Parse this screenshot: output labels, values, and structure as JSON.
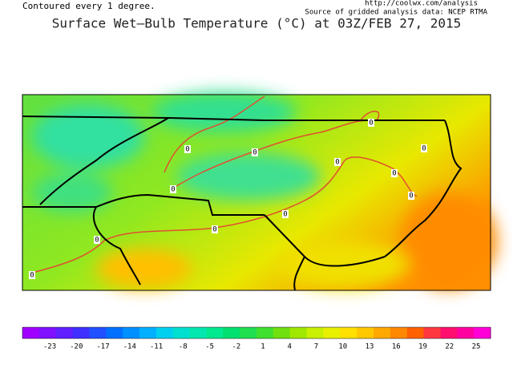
{
  "header": {
    "note": "Contoured every 1 degree.",
    "url": "http://coolwx.com/analysis",
    "source": "Source of gridded analysis data:  NCEP RTMA",
    "title": "Surface Wet–Bulb Temperature (°C) at 03Z/FEB 27, 2015"
  },
  "map": {
    "contour_labels": [
      "0",
      "0",
      "0",
      "0",
      "0",
      "0",
      "0",
      "0",
      "0",
      "0",
      "0",
      "0"
    ]
  },
  "colorbar": {
    "colors": [
      "#a000ff",
      "#8010ff",
      "#6020ff",
      "#4030ff",
      "#2050ff",
      "#0070ff",
      "#0090ff",
      "#00b0ff",
      "#00d0f0",
      "#00e0d0",
      "#00e8b0",
      "#00e890",
      "#00e070",
      "#20e050",
      "#40e030",
      "#70e010",
      "#a0e800",
      "#c8f000",
      "#e8f000",
      "#ffe000",
      "#ffc800",
      "#ffa800",
      "#ff8800",
      "#ff6000",
      "#ff3840",
      "#ff1070",
      "#ff00a0",
      "#ff00d8"
    ],
    "ticks": [
      "-23",
      "-20",
      "-17",
      "-14",
      "-11",
      "-8",
      "-5",
      "-2",
      "1",
      "4",
      "7",
      "10",
      "13",
      "16",
      "19",
      "22",
      "25"
    ]
  }
}
